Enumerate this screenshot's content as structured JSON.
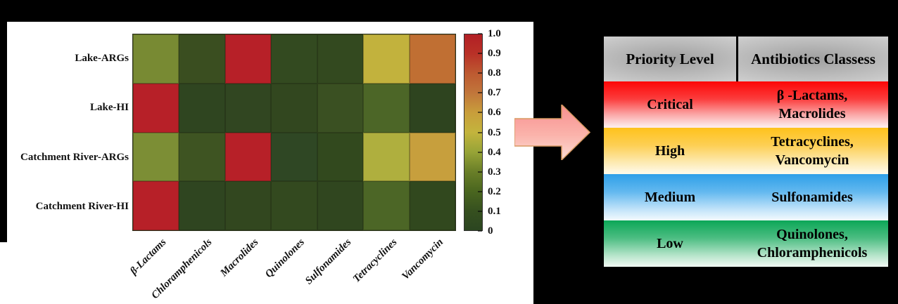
{
  "chart_data": {
    "type": "heatmap",
    "title": "",
    "rows": [
      "Lake-ARGs",
      "Lake-HI",
      "Catchment River-ARGs",
      "Catchment River-HI"
    ],
    "columns": [
      "β-Lactams",
      "Chloramphenicols",
      "Macrolides",
      "Quinolones",
      "Sulfonamides",
      "Tetracyclines",
      "Vancomycin"
    ],
    "values": [
      [
        0.35,
        0.08,
        0.97,
        0.05,
        0.05,
        0.52,
        0.72
      ],
      [
        0.97,
        0.04,
        0.05,
        0.05,
        0.11,
        0.2,
        0.04
      ],
      [
        0.36,
        0.11,
        0.97,
        0.06,
        0.07,
        0.45,
        0.6
      ],
      [
        0.97,
        0.04,
        0.05,
        0.05,
        0.04,
        0.2,
        0.06
      ]
    ],
    "cell_colors": [
      [
        "#788A33",
        "#3A4E20",
        "#B72028",
        "#334A20",
        "#33491F",
        "#C2B23D",
        "#C06F33"
      ],
      [
        "#B72028",
        "#2F4520",
        "#314621",
        "#32471F",
        "#3A5022",
        "#4C6627",
        "#2E441F"
      ],
      [
        "#7C8E35",
        "#3E5422",
        "#B72028",
        "#2F4724",
        "#32491E",
        "#AFAF3E",
        "#C79F3D"
      ],
      [
        "#B72028",
        "#2F4520",
        "#32471F",
        "#33491F",
        "#30461F",
        "#4C6626",
        "#31481E"
      ]
    ],
    "colorbar": {
      "min": 0,
      "max": 1,
      "ticks": [
        "1.0",
        "0.9",
        "0.8",
        "0.7",
        "0.6",
        "0.5",
        "0.4",
        "0.3",
        "0.2",
        "0.1",
        "0"
      ],
      "gradient_stops_bottom_to_top": [
        "#2B4520",
        "#36501F",
        "#4A661F",
        "#6A7F28",
        "#97A437",
        "#C3B43D",
        "#C89E3B",
        "#C1763B",
        "#BD5A31",
        "#B93127",
        "#B22025"
      ]
    },
    "legend_position": "right",
    "grid": true
  },
  "table": {
    "headers": [
      "Priority Level",
      "Antibiotics Classess"
    ],
    "rows": [
      {
        "level": "Critical",
        "classes": [
          "β -Lactams,",
          "Macrolides"
        ],
        "base_color": "#fd0606",
        "gradient": [
          "#fd0606 0%",
          "#fb3d3d 38%",
          "#fba8a8 72%",
          "#fdeaea 97%"
        ]
      },
      {
        "level": "High",
        "classes": [
          "Tetracyclines,",
          "Vancomycin"
        ],
        "base_color": "#fec21c",
        "gradient": [
          "#fec21c 0%",
          "#fdcf55 38%",
          "#fdeab2 75%",
          "#fef9e6 97%"
        ]
      },
      {
        "level": "Medium",
        "classes": [
          "Sulfonamides"
        ],
        "base_color": "#2f9fe8",
        "gradient": [
          "#2f9fe8 0%",
          "#62b8ef 38%",
          "#bfe2f9 75%",
          "#edf7fd 97%"
        ]
      },
      {
        "level": "Low",
        "classes": [
          "Quinolones,",
          "Chloramphenicols"
        ],
        "base_color": "#0ca757",
        "gradient": [
          "#0ca757 0%",
          "#4cbd82 38%",
          "#b4e4c9 75%",
          "#ecf7f0 97%"
        ]
      }
    ]
  },
  "arrow": {
    "direction": "right",
    "fill_top": "#f78f8f",
    "fill_bottom": "#fcded6",
    "stroke": "#d89a62"
  }
}
